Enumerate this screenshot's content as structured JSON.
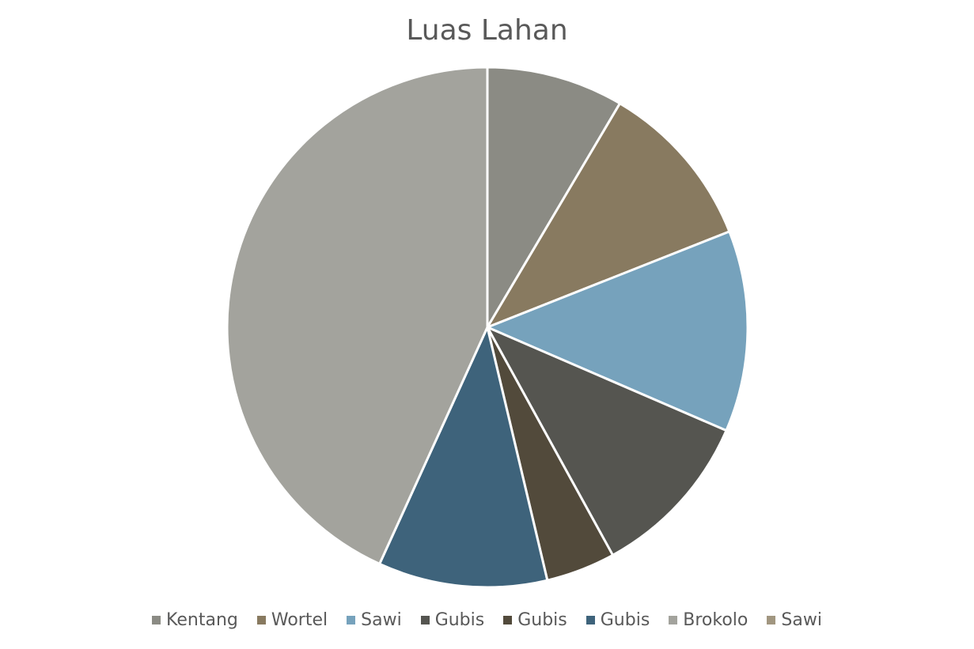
{
  "chart_data": {
    "type": "pie",
    "title": "Luas Lahan",
    "legend_position": "bottom",
    "start_angle_deg": 0,
    "direction": "clockwise",
    "slices": [
      {
        "label": "Kentang",
        "value": 8.5,
        "color": "#8b8b84"
      },
      {
        "label": "Wortel",
        "value": 10.5,
        "color": "#887a60"
      },
      {
        "label": "Sawi",
        "value": 12.5,
        "color": "#76a2bc"
      },
      {
        "label": "Gubis",
        "value": 10.5,
        "color": "#555550"
      },
      {
        "label": "Gubis",
        "value": 4.3,
        "color": "#524a3b"
      },
      {
        "label": "Gubis",
        "value": 10.5,
        "color": "#3e637b"
      },
      {
        "label": "Brokolo",
        "value": 43.2,
        "color": "#a3a39d"
      },
      {
        "label": "Sawi",
        "value": 0,
        "color": "#a19680"
      }
    ]
  }
}
